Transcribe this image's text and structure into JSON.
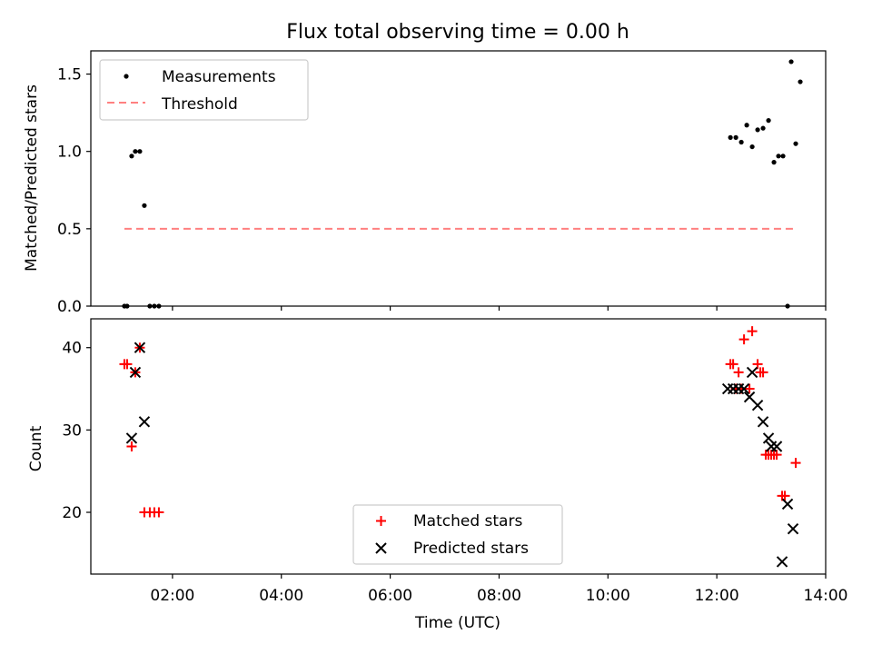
{
  "title": "Flux total observing time = 0.00 h",
  "chart_data": [
    {
      "type": "scatter",
      "ylabel": "Matched/Predicted stars",
      "xlim": [
        "00:30",
        "14:00"
      ],
      "ylim": [
        0,
        1.65
      ],
      "yticks": [
        "0.0",
        "0.5",
        "1.0",
        "1.5"
      ],
      "ytick_values": [
        0,
        0.5,
        1.0,
        1.5
      ],
      "legend": {
        "placement": "upper-left",
        "entries": [
          "Measurements",
          "Threshold"
        ]
      },
      "threshold": {
        "name": "Threshold",
        "y": 0.5,
        "x": [
          "01:07",
          "13:25"
        ],
        "color": "#ff8080"
      },
      "series": [
        {
          "name": "Measurements",
          "color": "#000000",
          "points": [
            [
              "01:07",
              0.0
            ],
            [
              "01:10",
              0.0
            ],
            [
              "01:15",
              0.97
            ],
            [
              "01:19",
              1.0
            ],
            [
              "01:24",
              1.0
            ],
            [
              "01:29",
              0.65
            ],
            [
              "01:35",
              0.0
            ],
            [
              "01:40",
              0.0
            ],
            [
              "01:45",
              0.0
            ],
            [
              "12:15",
              1.09
            ],
            [
              "12:21",
              1.09
            ],
            [
              "12:27",
              1.06
            ],
            [
              "12:33",
              1.17
            ],
            [
              "12:39",
              1.03
            ],
            [
              "12:45",
              1.14
            ],
            [
              "12:51",
              1.15
            ],
            [
              "12:57",
              1.2
            ],
            [
              "13:03",
              0.93
            ],
            [
              "13:08",
              0.97
            ],
            [
              "13:13",
              0.97
            ],
            [
              "13:18",
              0.0
            ],
            [
              "13:22",
              1.58
            ],
            [
              "13:27",
              1.05
            ],
            [
              "13:32",
              1.45
            ]
          ]
        }
      ]
    },
    {
      "type": "scatter",
      "xlabel": "Time (UTC)",
      "ylabel": "Count",
      "xlim": [
        "00:30",
        "14:00"
      ],
      "xticks": [
        "02:00",
        "04:00",
        "06:00",
        "08:00",
        "10:00",
        "12:00",
        "14:00"
      ],
      "ylim": [
        12.5,
        43.5
      ],
      "yticks": [
        "20",
        "30",
        "40"
      ],
      "ytick_values": [
        20,
        30,
        40
      ],
      "legend": {
        "placement": "lower-center",
        "entries": [
          "Matched stars",
          "Predicted stars"
        ]
      },
      "series": [
        {
          "name": "Matched stars",
          "marker": "+",
          "color": "#ff0000",
          "points": [
            [
              "01:07",
              38
            ],
            [
              "01:10",
              38
            ],
            [
              "01:15",
              28
            ],
            [
              "01:19",
              37
            ],
            [
              "01:24",
              40
            ],
            [
              "01:29",
              20
            ],
            [
              "01:35",
              20
            ],
            [
              "01:40",
              20
            ],
            [
              "01:45",
              20
            ],
            [
              "12:15",
              38
            ],
            [
              "12:18",
              38
            ],
            [
              "12:21",
              35
            ],
            [
              "12:24",
              37
            ],
            [
              "12:27",
              35
            ],
            [
              "12:30",
              41
            ],
            [
              "12:36",
              35
            ],
            [
              "12:39",
              42
            ],
            [
              "12:45",
              38
            ],
            [
              "12:48",
              37
            ],
            [
              "12:51",
              37
            ],
            [
              "12:54",
              27
            ],
            [
              "12:57",
              27
            ],
            [
              "13:00",
              27
            ],
            [
              "13:03",
              27
            ],
            [
              "13:06",
              27
            ],
            [
              "13:12",
              22
            ],
            [
              "13:15",
              22
            ],
            [
              "13:27",
              26
            ]
          ]
        },
        {
          "name": "Predicted stars",
          "marker": "x",
          "color": "#000000",
          "points": [
            [
              "01:15",
              29
            ],
            [
              "01:19",
              37
            ],
            [
              "01:24",
              40
            ],
            [
              "01:29",
              31
            ],
            [
              "12:12",
              35
            ],
            [
              "12:18",
              35
            ],
            [
              "12:24",
              35
            ],
            [
              "12:30",
              35
            ],
            [
              "12:36",
              34
            ],
            [
              "12:39",
              37
            ],
            [
              "12:45",
              33
            ],
            [
              "12:51",
              31
            ],
            [
              "12:57",
              29
            ],
            [
              "13:00",
              28
            ],
            [
              "13:06",
              28
            ],
            [
              "13:12",
              14
            ],
            [
              "13:18",
              21
            ],
            [
              "13:24",
              18
            ]
          ]
        }
      ]
    }
  ]
}
